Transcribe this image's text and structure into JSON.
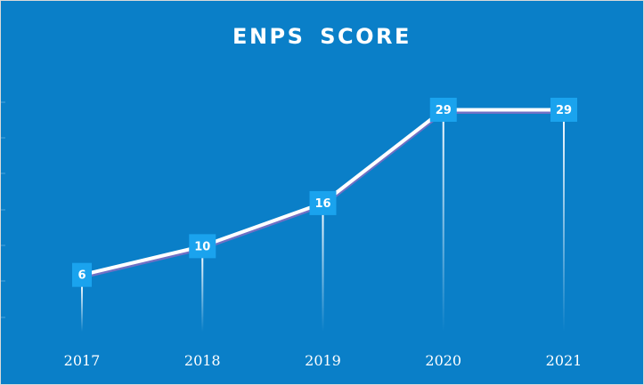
{
  "chart_data": {
    "type": "line",
    "title": "ENPS SCORE",
    "xlabel": "",
    "ylabel": "",
    "categories": [
      "2017",
      "2018",
      "2019",
      "2020",
      "2021"
    ],
    "series": [
      {
        "values": [
          6,
          10,
          16,
          29,
          29
        ]
      }
    ],
    "ylim": [
      -5,
      35
    ],
    "grid": false,
    "legend": "none",
    "colors": {
      "background": "#0a7fc8",
      "line": "#ffffff",
      "line_shadow": "#7b6fc4",
      "label_box": "#1aa3ee",
      "drop_line": "#ffffff",
      "frame_border": "#d9d9d9"
    }
  }
}
